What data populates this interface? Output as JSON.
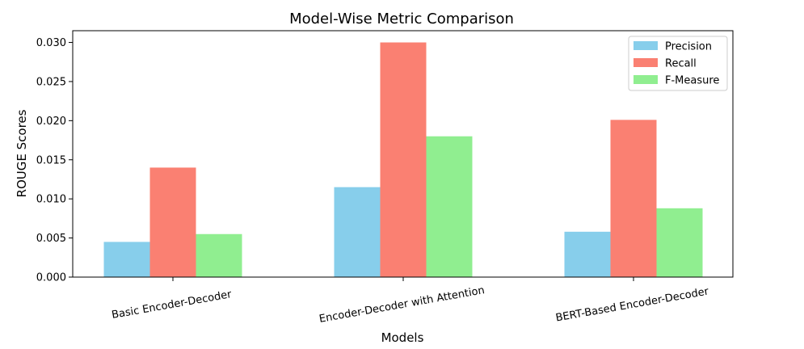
{
  "chart_data": {
    "type": "bar",
    "title": "Model-Wise Metric Comparison",
    "xlabel": "Models",
    "ylabel": "ROUGE Scores",
    "categories": [
      "Basic Encoder-Decoder",
      "Encoder-Decoder with Attention",
      "BERT-Based Encoder-Decoder"
    ],
    "series": [
      {
        "name": "Precision",
        "color": "#87ceeb",
        "values": [
          0.0045,
          0.0115,
          0.0058
        ]
      },
      {
        "name": "Recall",
        "color": "#fa8072",
        "values": [
          0.014,
          0.03,
          0.0201
        ]
      },
      {
        "name": "F-Measure",
        "color": "#90ee90",
        "values": [
          0.0055,
          0.018,
          0.0088
        ]
      }
    ],
    "ylim": [
      0,
      0.0315
    ],
    "yticks": [
      "0.000",
      "0.005",
      "0.010",
      "0.015",
      "0.020",
      "0.025",
      "0.030"
    ],
    "grid": false,
    "legend": "top-right"
  }
}
